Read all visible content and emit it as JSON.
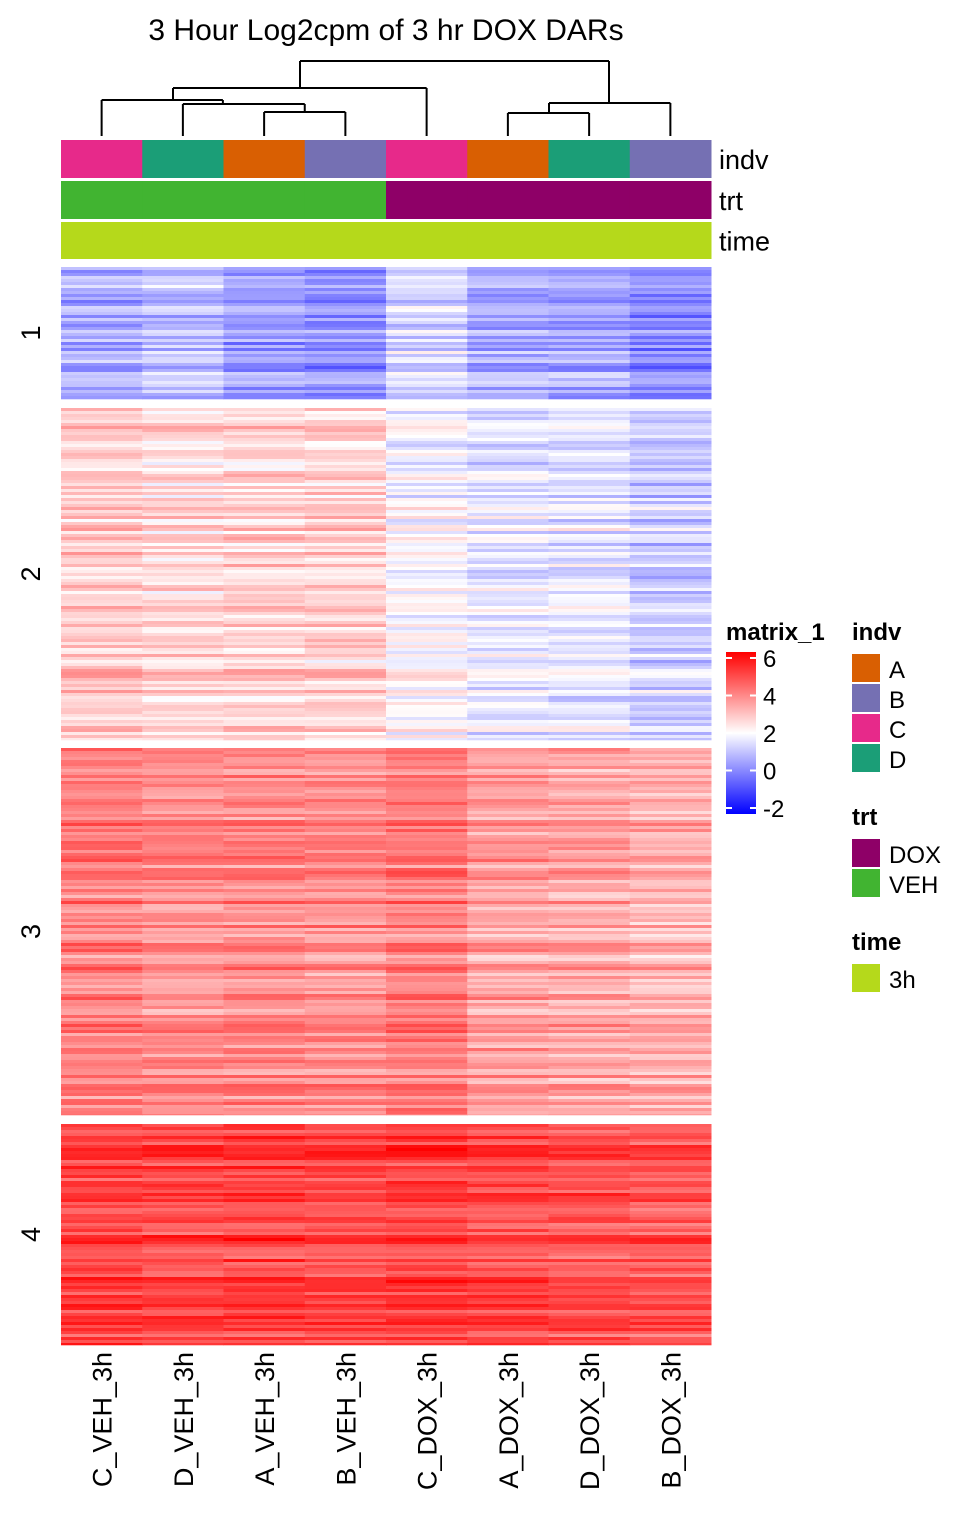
{
  "chart_data": {
    "type": "heatmap",
    "title": "3 Hour Log2cpm of 3 hr DOX DARs",
    "columns": [
      "C_VEH_3h",
      "D_VEH_3h",
      "A_VEH_3h",
      "B_VEH_3h",
      "C_DOX_3h",
      "A_DOX_3h",
      "D_DOX_3h",
      "B_DOX_3h"
    ],
    "row_splits": [
      {
        "label": "1",
        "column_means": [
          0.7,
          1.0,
          0.5,
          0.3,
          1.4,
          0.7,
          0.6,
          0.2
        ]
      },
      {
        "label": "2",
        "column_means": [
          2.8,
          2.6,
          2.7,
          2.7,
          2.0,
          1.6,
          1.6,
          1.2
        ]
      },
      {
        "label": "3",
        "column_means": [
          4.0,
          3.8,
          3.9,
          3.8,
          4.1,
          3.5,
          3.4,
          3.2
        ]
      },
      {
        "label": "4",
        "column_means": [
          5.0,
          4.9,
          5.0,
          4.9,
          5.0,
          4.9,
          4.8,
          4.7
        ]
      }
    ],
    "color_scale": {
      "name": "matrix_1",
      "ticks": [
        6,
        4,
        2,
        0,
        -2
      ],
      "range": [
        -2,
        6
      ],
      "stops": [
        {
          "value": -2,
          "color": "#0000ff"
        },
        {
          "value": 2,
          "color": "#ffffff"
        },
        {
          "value": 6,
          "color": "#ff0000"
        }
      ]
    },
    "annotations": [
      {
        "name": "indv",
        "values": [
          "C",
          "D",
          "A",
          "B",
          "C",
          "A",
          "D",
          "B"
        ]
      },
      {
        "name": "trt",
        "values": [
          "VEH",
          "VEH",
          "VEH",
          "VEH",
          "DOX",
          "DOX",
          "DOX",
          "DOX"
        ]
      },
      {
        "name": "time",
        "values": [
          "3h",
          "3h",
          "3h",
          "3h",
          "3h",
          "3h",
          "3h",
          "3h"
        ]
      }
    ],
    "legends": [
      {
        "title": "indv",
        "items": [
          {
            "label": "A",
            "color": "#d95f02"
          },
          {
            "label": "B",
            "color": "#7570b3"
          },
          {
            "label": "C",
            "color": "#e7298a"
          },
          {
            "label": "D",
            "color": "#1b9e77"
          }
        ]
      },
      {
        "title": "trt",
        "items": [
          {
            "label": "DOX",
            "color": "#8e0067"
          },
          {
            "label": "VEH",
            "color": "#41b431"
          }
        ]
      },
      {
        "title": "time",
        "items": [
          {
            "label": "3h",
            "color": "#b5d91b"
          }
        ]
      }
    ]
  }
}
